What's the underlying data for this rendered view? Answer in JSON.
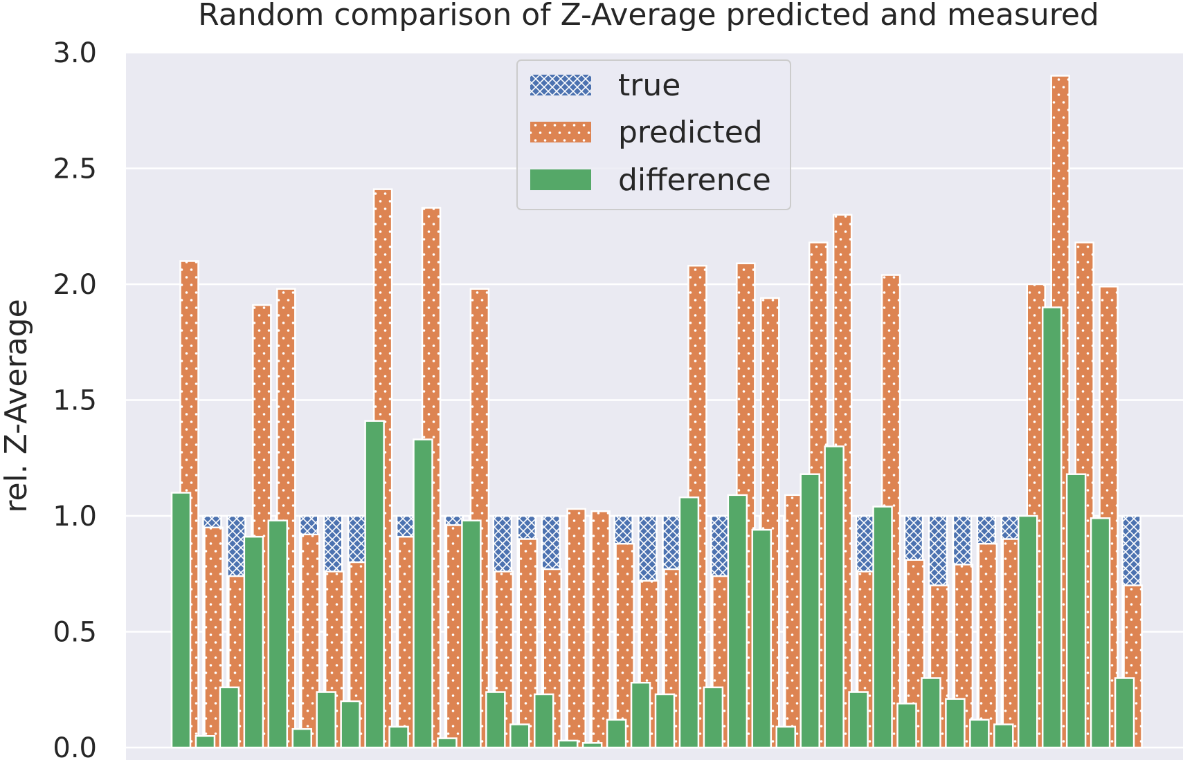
{
  "chart_data": {
    "type": "bar",
    "title": "Random comparison of Z-Average predicted and measured",
    "xlabel": "",
    "ylabel": "rel. Z-Average",
    "ylim": [
      0,
      3.05
    ],
    "yticks": [
      "0.0",
      "0.5",
      "1.0",
      "1.5",
      "2.0",
      "2.5",
      "3.0"
    ],
    "ytick_values": [
      0.0,
      0.5,
      1.0,
      1.5,
      2.0,
      2.5,
      3.0
    ],
    "grid": true,
    "legend_position": "top-center",
    "series": [
      {
        "name": "true",
        "color": "#4c72b0",
        "pattern": "crosshatch"
      },
      {
        "name": "predicted",
        "color": "#dd8452",
        "pattern": "dots"
      },
      {
        "name": "difference",
        "color": "#55a868",
        "pattern": "solid"
      }
    ],
    "groups": [
      {
        "true": 1.0,
        "predicted": 2.1,
        "difference": 1.1
      },
      {
        "true": 1.0,
        "predicted": 0.95,
        "difference": 0.05
      },
      {
        "true": 1.0,
        "predicted": 0.74,
        "difference": 0.26
      },
      {
        "true": 1.0,
        "predicted": 1.91,
        "difference": 0.91
      },
      {
        "true": 1.0,
        "predicted": 1.98,
        "difference": 0.98
      },
      {
        "true": 1.0,
        "predicted": 0.92,
        "difference": 0.08
      },
      {
        "true": 1.0,
        "predicted": 0.76,
        "difference": 0.24
      },
      {
        "true": 1.0,
        "predicted": 0.8,
        "difference": 0.2
      },
      {
        "true": 1.0,
        "predicted": 2.41,
        "difference": 1.41
      },
      {
        "true": 1.0,
        "predicted": 0.91,
        "difference": 0.09
      },
      {
        "true": 1.0,
        "predicted": 2.33,
        "difference": 1.33
      },
      {
        "true": 1.0,
        "predicted": 0.96,
        "difference": 0.04
      },
      {
        "true": 1.0,
        "predicted": 1.98,
        "difference": 0.98
      },
      {
        "true": 1.0,
        "predicted": 0.76,
        "difference": 0.24
      },
      {
        "true": 1.0,
        "predicted": 0.9,
        "difference": 0.1
      },
      {
        "true": 1.0,
        "predicted": 0.77,
        "difference": 0.23
      },
      {
        "true": 1.0,
        "predicted": 1.03,
        "difference": 0.03
      },
      {
        "true": 1.0,
        "predicted": 1.02,
        "difference": 0.02
      },
      {
        "true": 1.0,
        "predicted": 0.88,
        "difference": 0.12
      },
      {
        "true": 1.0,
        "predicted": 0.72,
        "difference": 0.28
      },
      {
        "true": 1.0,
        "predicted": 0.77,
        "difference": 0.23
      },
      {
        "true": 1.0,
        "predicted": 2.08,
        "difference": 1.08
      },
      {
        "true": 1.0,
        "predicted": 0.74,
        "difference": 0.26
      },
      {
        "true": 1.0,
        "predicted": 2.09,
        "difference": 1.09
      },
      {
        "true": 1.0,
        "predicted": 1.94,
        "difference": 0.94
      },
      {
        "true": 1.0,
        "predicted": 1.09,
        "difference": 0.09
      },
      {
        "true": 1.0,
        "predicted": 2.18,
        "difference": 1.18
      },
      {
        "true": 1.0,
        "predicted": 2.3,
        "difference": 1.3
      },
      {
        "true": 1.0,
        "predicted": 0.76,
        "difference": 0.24
      },
      {
        "true": 1.0,
        "predicted": 2.04,
        "difference": 1.04
      },
      {
        "true": 1.0,
        "predicted": 0.81,
        "difference": 0.19
      },
      {
        "true": 1.0,
        "predicted": 0.7,
        "difference": 0.3
      },
      {
        "true": 1.0,
        "predicted": 0.79,
        "difference": 0.21
      },
      {
        "true": 1.0,
        "predicted": 0.88,
        "difference": 0.12
      },
      {
        "true": 1.0,
        "predicted": 0.9,
        "difference": 0.1
      },
      {
        "true": 1.0,
        "predicted": 2.0,
        "difference": 1.0
      },
      {
        "true": 1.0,
        "predicted": 2.9,
        "difference": 1.9
      },
      {
        "true": 1.0,
        "predicted": 2.18,
        "difference": 1.18
      },
      {
        "true": 1.0,
        "predicted": 1.99,
        "difference": 0.99
      },
      {
        "true": 1.0,
        "predicted": 0.7,
        "difference": 0.3
      }
    ]
  }
}
